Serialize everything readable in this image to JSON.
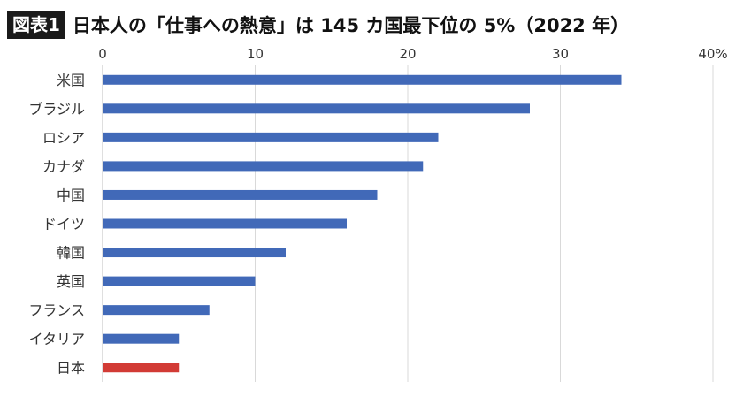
{
  "header": {
    "badge": "図表1",
    "title": "日本人の「仕事への熱意」は 145 カ国最下位の 5%（2022 年）"
  },
  "colors": {
    "bar": "#4169b8",
    "highlight": "#d23b35",
    "grid": "#d9d9d9",
    "axis": "#bfbfbf",
    "text": "#333333"
  },
  "chart_data": {
    "type": "bar",
    "orientation": "horizontal",
    "title": "日本人の「仕事への熱意」は 145 カ国最下位の 5%（2022 年）",
    "categories": [
      "米国",
      "ブラジル",
      "ロシア",
      "カナダ",
      "中国",
      "ドイツ",
      "韓国",
      "英国",
      "フランス",
      "イタリア",
      "日本"
    ],
    "values": [
      34,
      28,
      22,
      21,
      18,
      16,
      12,
      10,
      7,
      5,
      5
    ],
    "highlight": "日本",
    "xlim": [
      0,
      40
    ],
    "xticks": [
      0,
      10,
      20,
      30,
      40
    ],
    "xtick_labels": [
      "0",
      "10",
      "20",
      "30",
      "40%"
    ],
    "xlabel": "",
    "ylabel": "",
    "grid": true,
    "legend": "none"
  }
}
